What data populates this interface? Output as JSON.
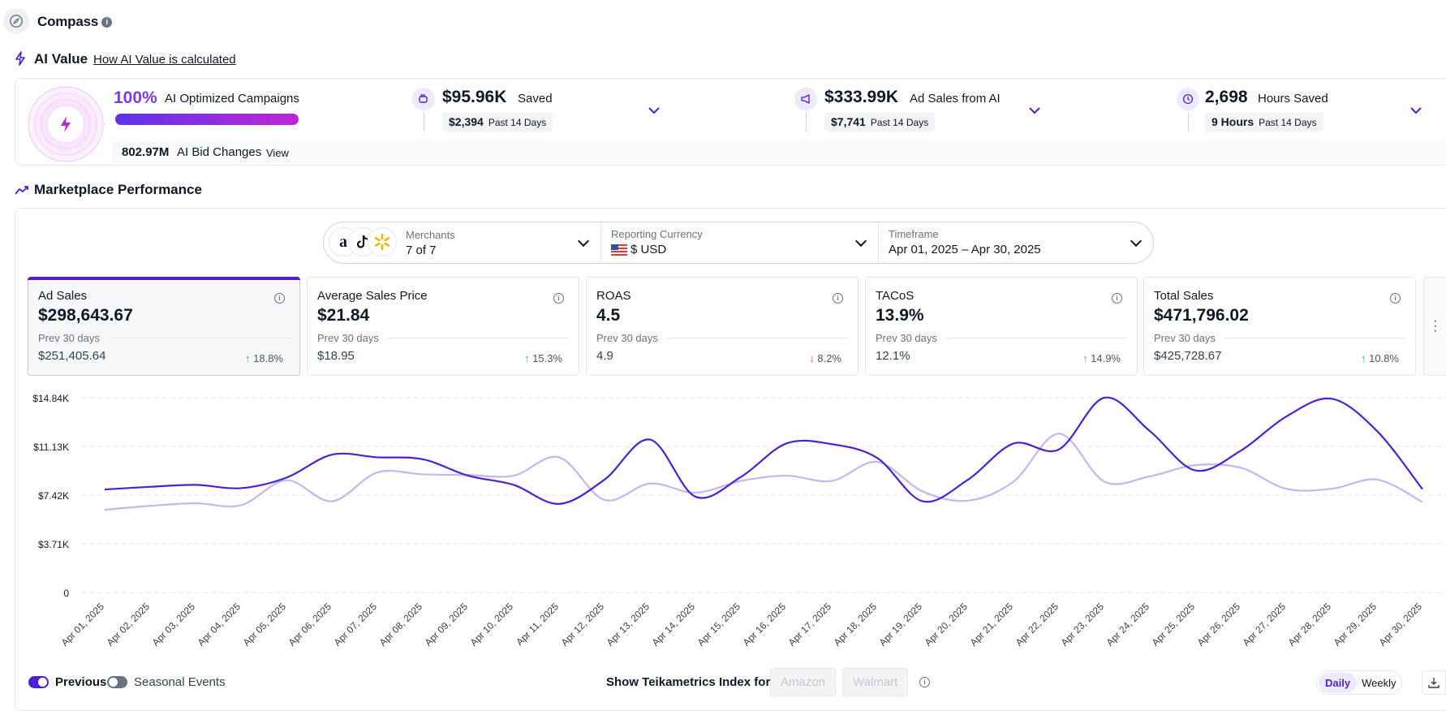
{
  "header": {
    "title": "Compass",
    "info": "i"
  },
  "ai_value": {
    "title": "AI Value",
    "link": "How AI Value is calculated",
    "optimized_pct": "100%",
    "optimized_label": "AI Optimized Campaigns",
    "optimized_fraction": 1.0,
    "bid_changes_value": "802.97M",
    "bid_changes_label": "AI Bid Changes",
    "bid_changes_view": "View",
    "stats": [
      {
        "value": "$95.96K",
        "label": "Saved",
        "sub_value": "$2,394",
        "sub_label": "Past 14 Days",
        "icon": "piggy-bank-icon"
      },
      {
        "value": "$333.99K",
        "label": "Ad Sales from AI",
        "sub_value": "$7,741",
        "sub_label": "Past 14 Days",
        "icon": "megaphone-icon"
      },
      {
        "value": "2,698",
        "label": "Hours Saved",
        "sub_value": "9 Hours",
        "sub_label": "Past 14 Days",
        "icon": "clock-icon"
      }
    ]
  },
  "marketplace": {
    "title": "Marketplace Performance",
    "filters": {
      "merchants_label": "Merchants",
      "merchants_value": "7 of 7",
      "currency_label": "Reporting Currency",
      "currency_value": "$ USD",
      "timeframe_label": "Timeframe",
      "timeframe_value": "Apr 01, 2025 – Apr 30, 2025"
    },
    "metrics": [
      {
        "label": "Ad Sales",
        "value": "$298,643.67",
        "prev_label": "Prev 30 days",
        "prev_value": "$251,405.64",
        "change": "18.8%",
        "direction": "up"
      },
      {
        "label": "Average Sales Price",
        "value": "$21.84",
        "prev_label": "Prev 30 days",
        "prev_value": "$18.95",
        "change": "15.3%",
        "direction": "up"
      },
      {
        "label": "ROAS",
        "value": "4.5",
        "prev_label": "Prev 30 days",
        "prev_value": "4.9",
        "change": "8.2%",
        "direction": "down"
      },
      {
        "label": "TACoS",
        "value": "13.9%",
        "prev_label": "Prev 30 days",
        "prev_value": "12.1%",
        "change": "14.9%",
        "direction": "up-orange"
      },
      {
        "label": "Total Sales",
        "value": "$471,796.02",
        "prev_label": "Prev 30 days",
        "prev_value": "$425,728.67",
        "change": "10.8%",
        "direction": "up"
      }
    ],
    "controls": {
      "previous_label": "Previous",
      "seasonal_label": "Seasonal Events",
      "index_label": "Show Teikametrics Index for",
      "amazon": "Amazon",
      "walmart": "Walmart",
      "daily": "Daily",
      "weekly": "Weekly"
    }
  },
  "colors": {
    "accent": "#4f1fd6",
    "previous": "#c4b5f5",
    "grad_start": "#5b34e8",
    "grad_end": "#c026d3"
  },
  "chart_data": {
    "type": "line",
    "ytick_labels": [
      "$14.84K",
      "$11.13K",
      "$7.42K",
      "$3.71K",
      "0"
    ],
    "ytick_values": [
      14840,
      11130,
      7420,
      3710,
      0
    ],
    "ylim": [
      0,
      14840
    ],
    "grid": true,
    "x": [
      "Apr 01, 2025",
      "Apr 02, 2025",
      "Apr 03, 2025",
      "Apr 04, 2025",
      "Apr 05, 2025",
      "Apr 06, 2025",
      "Apr 07, 2025",
      "Apr 08, 2025",
      "Apr 09, 2025",
      "Apr 10, 2025",
      "Apr 11, 2025",
      "Apr 12, 2025",
      "Apr 13, 2025",
      "Apr 14, 2025",
      "Apr 15, 2025",
      "Apr 16, 2025",
      "Apr 17, 2025",
      "Apr 18, 2025",
      "Apr 19, 2025",
      "Apr 20, 2025",
      "Apr 21, 2025",
      "Apr 22, 2025",
      "Apr 23, 2025",
      "Apr 24, 2025",
      "Apr 25, 2025",
      "Apr 26, 2025",
      "Apr 27, 2025",
      "Apr 28, 2025",
      "Apr 29, 2025",
      "Apr 30, 2025"
    ],
    "series": [
      {
        "values": [
          7850,
          8050,
          8200,
          7950,
          8750,
          10500,
          10300,
          10150,
          8900,
          8200,
          6750,
          8600,
          11650,
          7300,
          8800,
          11350,
          11300,
          10250,
          6950,
          8600,
          11350,
          10900,
          14840,
          12300,
          9300,
          10800,
          13400,
          14760,
          12300,
          7870
        ]
      },
      {
        "values": [
          6300,
          6600,
          6800,
          6650,
          8550,
          6950,
          9150,
          9000,
          8950,
          8900,
          10300,
          7050,
          8300,
          7600,
          8500,
          8900,
          8500,
          9950,
          7700,
          7000,
          8450,
          12100,
          8450,
          8850,
          9700,
          9500,
          7900,
          7900,
          8600,
          6900
        ]
      }
    ]
  }
}
